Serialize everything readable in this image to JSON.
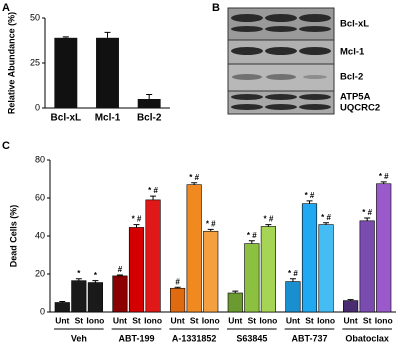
{
  "chart_data": [
    {
      "type": "bar",
      "panel_label": "A",
      "ylabel": "Relative Abundance (%)",
      "categories": [
        "Bcl-xL",
        "Mcl-1",
        "Bcl-2"
      ],
      "values": [
        39,
        39,
        5
      ],
      "errors": [
        0.5,
        3,
        2.5
      ],
      "color": "#111111",
      "ylim": [
        0,
        50
      ],
      "yticks": [
        0,
        25,
        50
      ]
    },
    {
      "type": "grouped_bar",
      "panel_label": "C",
      "ylabel": "Dead Cells (%)",
      "ylim": [
        0,
        80
      ],
      "yticks": [
        0,
        20,
        40,
        60,
        80
      ],
      "groups": [
        {
          "name": "Veh",
          "labels": [
            "Unt",
            "St",
            "Iono"
          ],
          "values": [
            5,
            16.5,
            15.5
          ],
          "errors": [
            0.5,
            1,
            1
          ],
          "colors": [
            "#1a1a1a",
            "#1a1a1a",
            "#1a1a1a"
          ],
          "annotations": [
            null,
            "*",
            "*"
          ]
        },
        {
          "name": "ABT-199",
          "labels": [
            "Unt",
            "St",
            "Iono"
          ],
          "values": [
            19,
            44.5,
            59
          ],
          "errors": [
            0.5,
            1.5,
            2
          ],
          "colors": [
            "#8b0000",
            "#d40000",
            "#e01818"
          ],
          "annotations": [
            "#",
            "* #",
            "* #"
          ]
        },
        {
          "name": "A-1331852",
          "labels": [
            "Unt",
            "St",
            "Iono"
          ],
          "values": [
            12.5,
            67,
            42.5
          ],
          "errors": [
            0.5,
            1,
            1
          ],
          "colors": [
            "#e06a10",
            "#f08a20",
            "#f5a040"
          ],
          "annotations": [
            "#",
            "* #",
            "* #"
          ]
        },
        {
          "name": "S63845",
          "labels": [
            "Unt",
            "St",
            "Iono"
          ],
          "values": [
            10,
            36,
            45
          ],
          "errors": [
            1,
            1.5,
            1
          ],
          "colors": [
            "#6a9a30",
            "#8cc040",
            "#a6d455"
          ],
          "annotations": [
            null,
            "* #",
            "* #"
          ]
        },
        {
          "name": "ABT-737",
          "labels": [
            "Unt",
            "St",
            "Iono"
          ],
          "values": [
            16,
            57,
            46
          ],
          "errors": [
            1.5,
            1.5,
            1
          ],
          "colors": [
            "#1a8fd0",
            "#20a8f0",
            "#45bcf2"
          ],
          "annotations": [
            "* #",
            "* #",
            "* #"
          ]
        },
        {
          "name": "Obatoclax",
          "labels": [
            "Unt",
            "St",
            "Iono"
          ],
          "values": [
            6,
            48,
            67.5
          ],
          "errors": [
            0.5,
            1.5,
            1
          ],
          "colors": [
            "#4a2c70",
            "#7b4cb0",
            "#9a5acc"
          ],
          "annotations": [
            null,
            "* #",
            "* #"
          ]
        }
      ]
    }
  ],
  "blot": {
    "panel_label": "B",
    "rows": [
      "Bcl-xL",
      "Mcl-1",
      "Bcl-2",
      "ATP5A",
      "UQCRC2"
    ]
  }
}
